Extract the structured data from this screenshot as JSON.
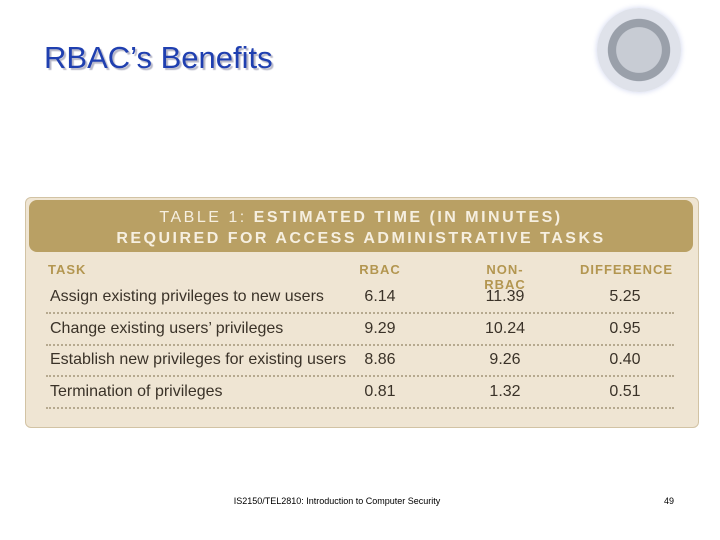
{
  "title": "RBAC’s Benefits",
  "table": {
    "caption_label": "TABLE 1:",
    "caption": [
      "ESTIMATED TIME (IN MINUTES)",
      "REQUIRED FOR ACCESS ADMINISTRATIVE TASKS"
    ],
    "header": [
      "TASK",
      "RBAC",
      "NON-RBAC",
      "DIFFERENCE"
    ],
    "rows": [
      [
        "Assign existing privileges to new users",
        "6.14",
        "11.39",
        "5.25"
      ],
      [
        "Change existing users’ privileges",
        "9.29",
        "10.24",
        "0.95"
      ],
      [
        "Establish new privileges for existing users",
        "8.86",
        "9.26",
        "0.40"
      ],
      [
        "Termination of privileges",
        "0.81",
        "1.32",
        "0.51"
      ]
    ]
  },
  "footer": {
    "course": "IS2150/TEL2810: Introduction to Computer Security",
    "page": "49"
  }
}
